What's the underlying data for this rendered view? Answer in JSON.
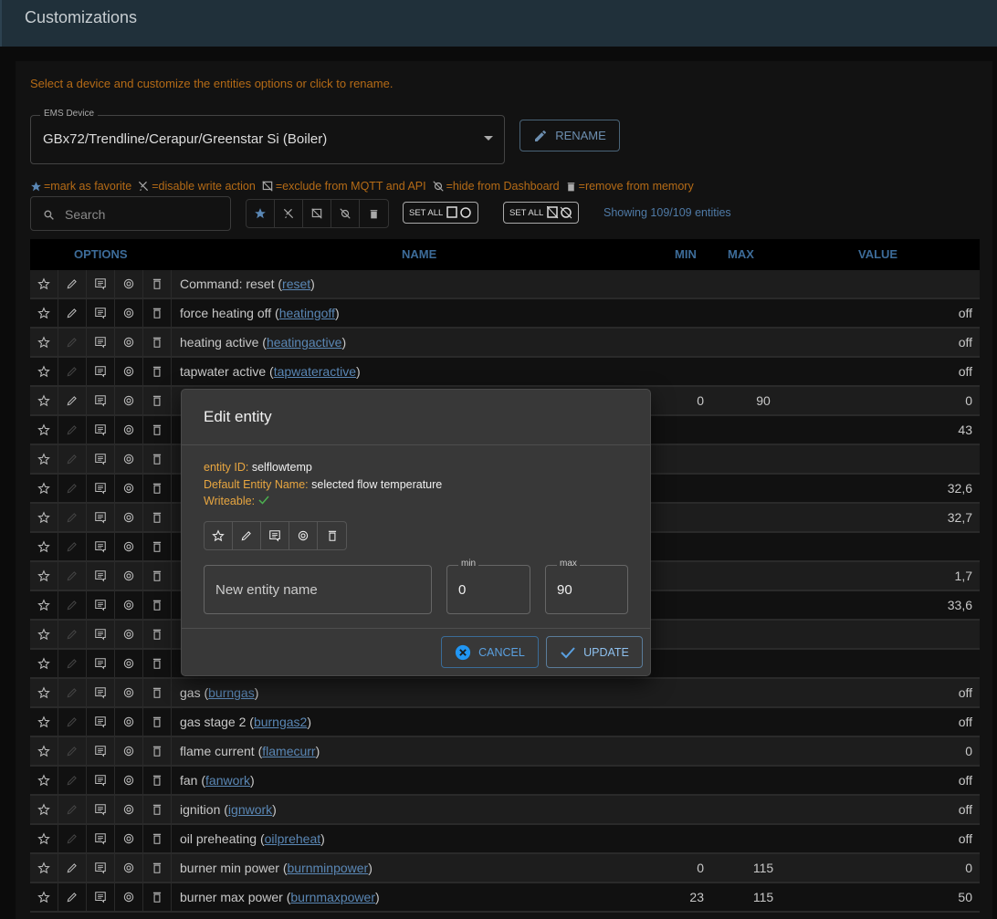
{
  "header": {
    "title": "Customizations"
  },
  "hint": "Select a device and customize the entities options or click to rename.",
  "device_select": {
    "label": "EMS Device",
    "value": "GBx72/Trendline/Cerapur/Greenstar Si (Boiler)"
  },
  "rename_label": "RENAME",
  "legend": {
    "favorite": "=mark as favorite",
    "readonly": "=disable write action",
    "exclude": "=exclude from MQTT and API",
    "hide": "=hide from Dashboard",
    "remove": "=remove from memory"
  },
  "search": {
    "placeholder": "Search",
    "value": ""
  },
  "set_all_1": "SET ALL",
  "set_all_2": "SET ALL",
  "showing": "Showing 109/109 entities",
  "columns": {
    "options": "OPTIONS",
    "name": "NAME",
    "min": "MIN",
    "max": "MAX",
    "value": "VALUE"
  },
  "rows": [
    {
      "name": "Command: reset (",
      "id": "reset",
      "min": "",
      "max": "",
      "value": "",
      "writeable": true
    },
    {
      "name": "force heating off (",
      "id": "heatingoff",
      "min": "",
      "max": "",
      "value": "off",
      "writeable": true
    },
    {
      "name": "heating active (",
      "id": "heatingactive",
      "min": "",
      "max": "",
      "value": "off",
      "writeable": false
    },
    {
      "name": "tapwater active (",
      "id": "tapwateractive",
      "min": "",
      "max": "",
      "value": "off",
      "writeable": false
    },
    {
      "name": "",
      "id": "",
      "min": "0",
      "max": "90",
      "value": "0",
      "writeable": true
    },
    {
      "name": "",
      "id": "",
      "min": "",
      "max": "",
      "value": "43",
      "writeable": false
    },
    {
      "name": "",
      "id": "",
      "min": "",
      "max": "",
      "value": "",
      "writeable": false
    },
    {
      "name": "",
      "id": "",
      "min": "",
      "max": "",
      "value": "32,6",
      "writeable": false
    },
    {
      "name": "",
      "id": "",
      "min": "",
      "max": "",
      "value": "32,7",
      "writeable": false
    },
    {
      "name": "",
      "id": "",
      "min": "",
      "max": "",
      "value": "",
      "writeable": false
    },
    {
      "name": "",
      "id": "",
      "min": "",
      "max": "",
      "value": "1,7",
      "writeable": false
    },
    {
      "name": "",
      "id": "",
      "min": "",
      "max": "",
      "value": "33,6",
      "writeable": false
    },
    {
      "name": "",
      "id": "",
      "min": "",
      "max": "",
      "value": "",
      "writeable": false
    },
    {
      "name": "",
      "id": "",
      "min": "",
      "max": "",
      "value": "",
      "writeable": false
    },
    {
      "name": "gas (",
      "id": "burngas",
      "min": "",
      "max": "",
      "value": "off",
      "writeable": false
    },
    {
      "name": "gas stage 2 (",
      "id": "burngas2",
      "min": "",
      "max": "",
      "value": "off",
      "writeable": false
    },
    {
      "name": "flame current (",
      "id": "flamecurr",
      "min": "",
      "max": "",
      "value": "0",
      "writeable": false
    },
    {
      "name": "fan (",
      "id": "fanwork",
      "min": "",
      "max": "",
      "value": "off",
      "writeable": false
    },
    {
      "name": "ignition (",
      "id": "ignwork",
      "min": "",
      "max": "",
      "value": "off",
      "writeable": false
    },
    {
      "name": "oil preheating (",
      "id": "oilpreheat",
      "min": "",
      "max": "",
      "value": "off",
      "writeable": false
    },
    {
      "name": "burner min power (",
      "id": "burnminpower",
      "min": "0",
      "max": "115",
      "value": "0",
      "writeable": true
    },
    {
      "name": "burner max power (",
      "id": "burnmaxpower",
      "min": "23",
      "max": "115",
      "value": "50",
      "writeable": true
    }
  ],
  "dialog": {
    "title": "Edit entity",
    "entity_id_label": "entity ID:",
    "entity_id": "selflowtemp",
    "default_name_label": "Default Entity Name:",
    "default_name": "selected flow temperature",
    "writeable_label": "Writeable:",
    "writeable_icon": "check-icon",
    "name_placeholder": "New entity name",
    "min_label": "min",
    "min_value": "0",
    "max_label": "max",
    "max_value": "90",
    "cancel_label": "CANCEL",
    "update_label": "UPDATE"
  },
  "colors": {
    "accent": "#5aa0e0",
    "hint": "#b56b16",
    "header_text": "#3d6c99",
    "dialog_label": "#e8a640",
    "check": "#4caf50"
  }
}
